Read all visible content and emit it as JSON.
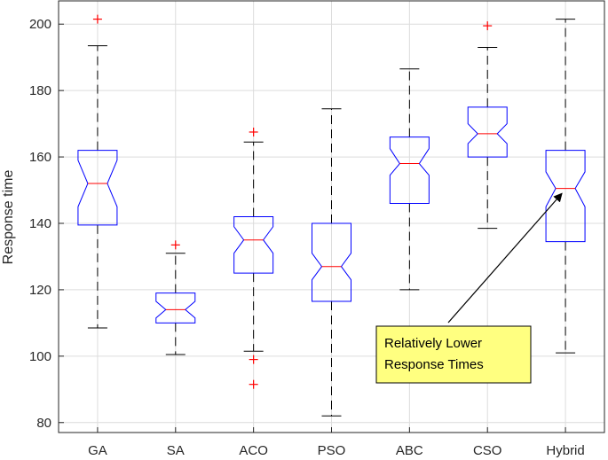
{
  "chart_data": {
    "type": "boxplot",
    "title": "",
    "xlabel": "",
    "ylabel": "Response time",
    "ylim": [
      77,
      207
    ],
    "yticks": [
      80,
      100,
      120,
      140,
      160,
      180,
      200
    ],
    "grid": true,
    "notched": true,
    "categories": [
      "GA",
      "SA",
      "ACO",
      "PSO",
      "ABC",
      "CSO",
      "Hybrid"
    ],
    "boxes": [
      {
        "category": "GA",
        "whisker_low": 108.5,
        "q1": 139.5,
        "median": 152,
        "q3": 162,
        "whisker_high": 193.5,
        "notch_low": 145,
        "notch_high": 159,
        "outliers": [
          201.5
        ]
      },
      {
        "category": "SA",
        "whisker_low": 100.5,
        "q1": 110,
        "median": 114,
        "q3": 119,
        "whisker_high": 131,
        "notch_low": 111.5,
        "notch_high": 116.5,
        "outliers": [
          133.5
        ]
      },
      {
        "category": "ACO",
        "whisker_low": 101.5,
        "q1": 125,
        "median": 135,
        "q3": 142,
        "whisker_high": 164.5,
        "notch_low": 131,
        "notch_high": 139,
        "outliers": [
          167.5,
          99,
          91.5
        ]
      },
      {
        "category": "PSO",
        "whisker_low": 82,
        "q1": 116.5,
        "median": 127,
        "q3": 140,
        "whisker_high": 174.5,
        "notch_low": 123,
        "notch_high": 131,
        "outliers": []
      },
      {
        "category": "ABC",
        "whisker_low": 120,
        "q1": 146,
        "median": 158,
        "q3": 166,
        "whisker_high": 186.5,
        "notch_low": 154.5,
        "notch_high": 162.5,
        "outliers": []
      },
      {
        "category": "CSO",
        "whisker_low": 138.5,
        "q1": 160,
        "median": 167,
        "q3": 175,
        "whisker_high": 193,
        "notch_low": 164,
        "notch_high": 170,
        "outliers": [
          199.5
        ]
      },
      {
        "category": "Hybrid",
        "whisker_low": 101,
        "q1": 134.5,
        "median": 150.5,
        "q3": 162,
        "whisker_high": 201.5,
        "notch_low": 145,
        "notch_high": 155.5,
        "outliers": []
      }
    ],
    "annotation": {
      "line1": "Relatively Lower",
      "line2": "Response Times",
      "arrow_target_category": "Hybrid",
      "arrow_target_value": 149
    },
    "colors": {
      "box": "#0000ff",
      "median": "#ff0000",
      "outlier": "#ff0000",
      "whisker": "#000000",
      "grid": "#dcdcdc",
      "annotation_fill": "#ffff80"
    }
  }
}
